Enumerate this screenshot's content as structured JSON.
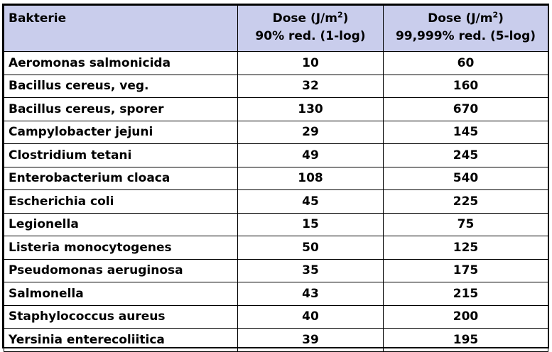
{
  "table": {
    "headers": {
      "bacteria": "Bakterie",
      "col1_line1_prefix": "Dose (J/m",
      "col1_line1_sup": "2",
      "col1_line1_suffix": ")",
      "col1_line2": "90% red. (1-log)",
      "col2_line1_prefix": "Dose (J/m",
      "col2_line1_sup": "2",
      "col2_line1_suffix": ")",
      "col2_line2": "99,999% red. (5-log)"
    },
    "rows": [
      {
        "name": "Aeromonas salmonicida",
        "dose1": "10",
        "dose5": "60"
      },
      {
        "name": "Bacillus cereus, veg.",
        "dose1": "32",
        "dose5": "160"
      },
      {
        "name": "Bacillus cereus, sporer",
        "dose1": "130",
        "dose5": "670"
      },
      {
        "name": "Campylobacter jejuni",
        "dose1": "29",
        "dose5": "145"
      },
      {
        "name": "Clostridium tetani",
        "dose1": "49",
        "dose5": "245"
      },
      {
        "name": "Enterobacterium cloaca",
        "dose1": "108",
        "dose5": "540"
      },
      {
        "name": "Escherichia coli",
        "dose1": "45",
        "dose5": "225"
      },
      {
        "name": "Legionella",
        "dose1": "15",
        "dose5": "75"
      },
      {
        "name": "Listeria monocytogenes",
        "dose1": "50",
        "dose5": "125"
      },
      {
        "name": "Pseudomonas aeruginosa",
        "dose1": "35",
        "dose5": "175"
      },
      {
        "name": "Salmonella",
        "dose1": "43",
        "dose5": "215"
      },
      {
        "name": "Staphylococcus aureus",
        "dose1": "40",
        "dose5": "200"
      },
      {
        "name": "Yersinia enterecoliitica",
        "dose1": "39",
        "dose5": "195"
      }
    ],
    "header_background": "#c9cdec"
  }
}
